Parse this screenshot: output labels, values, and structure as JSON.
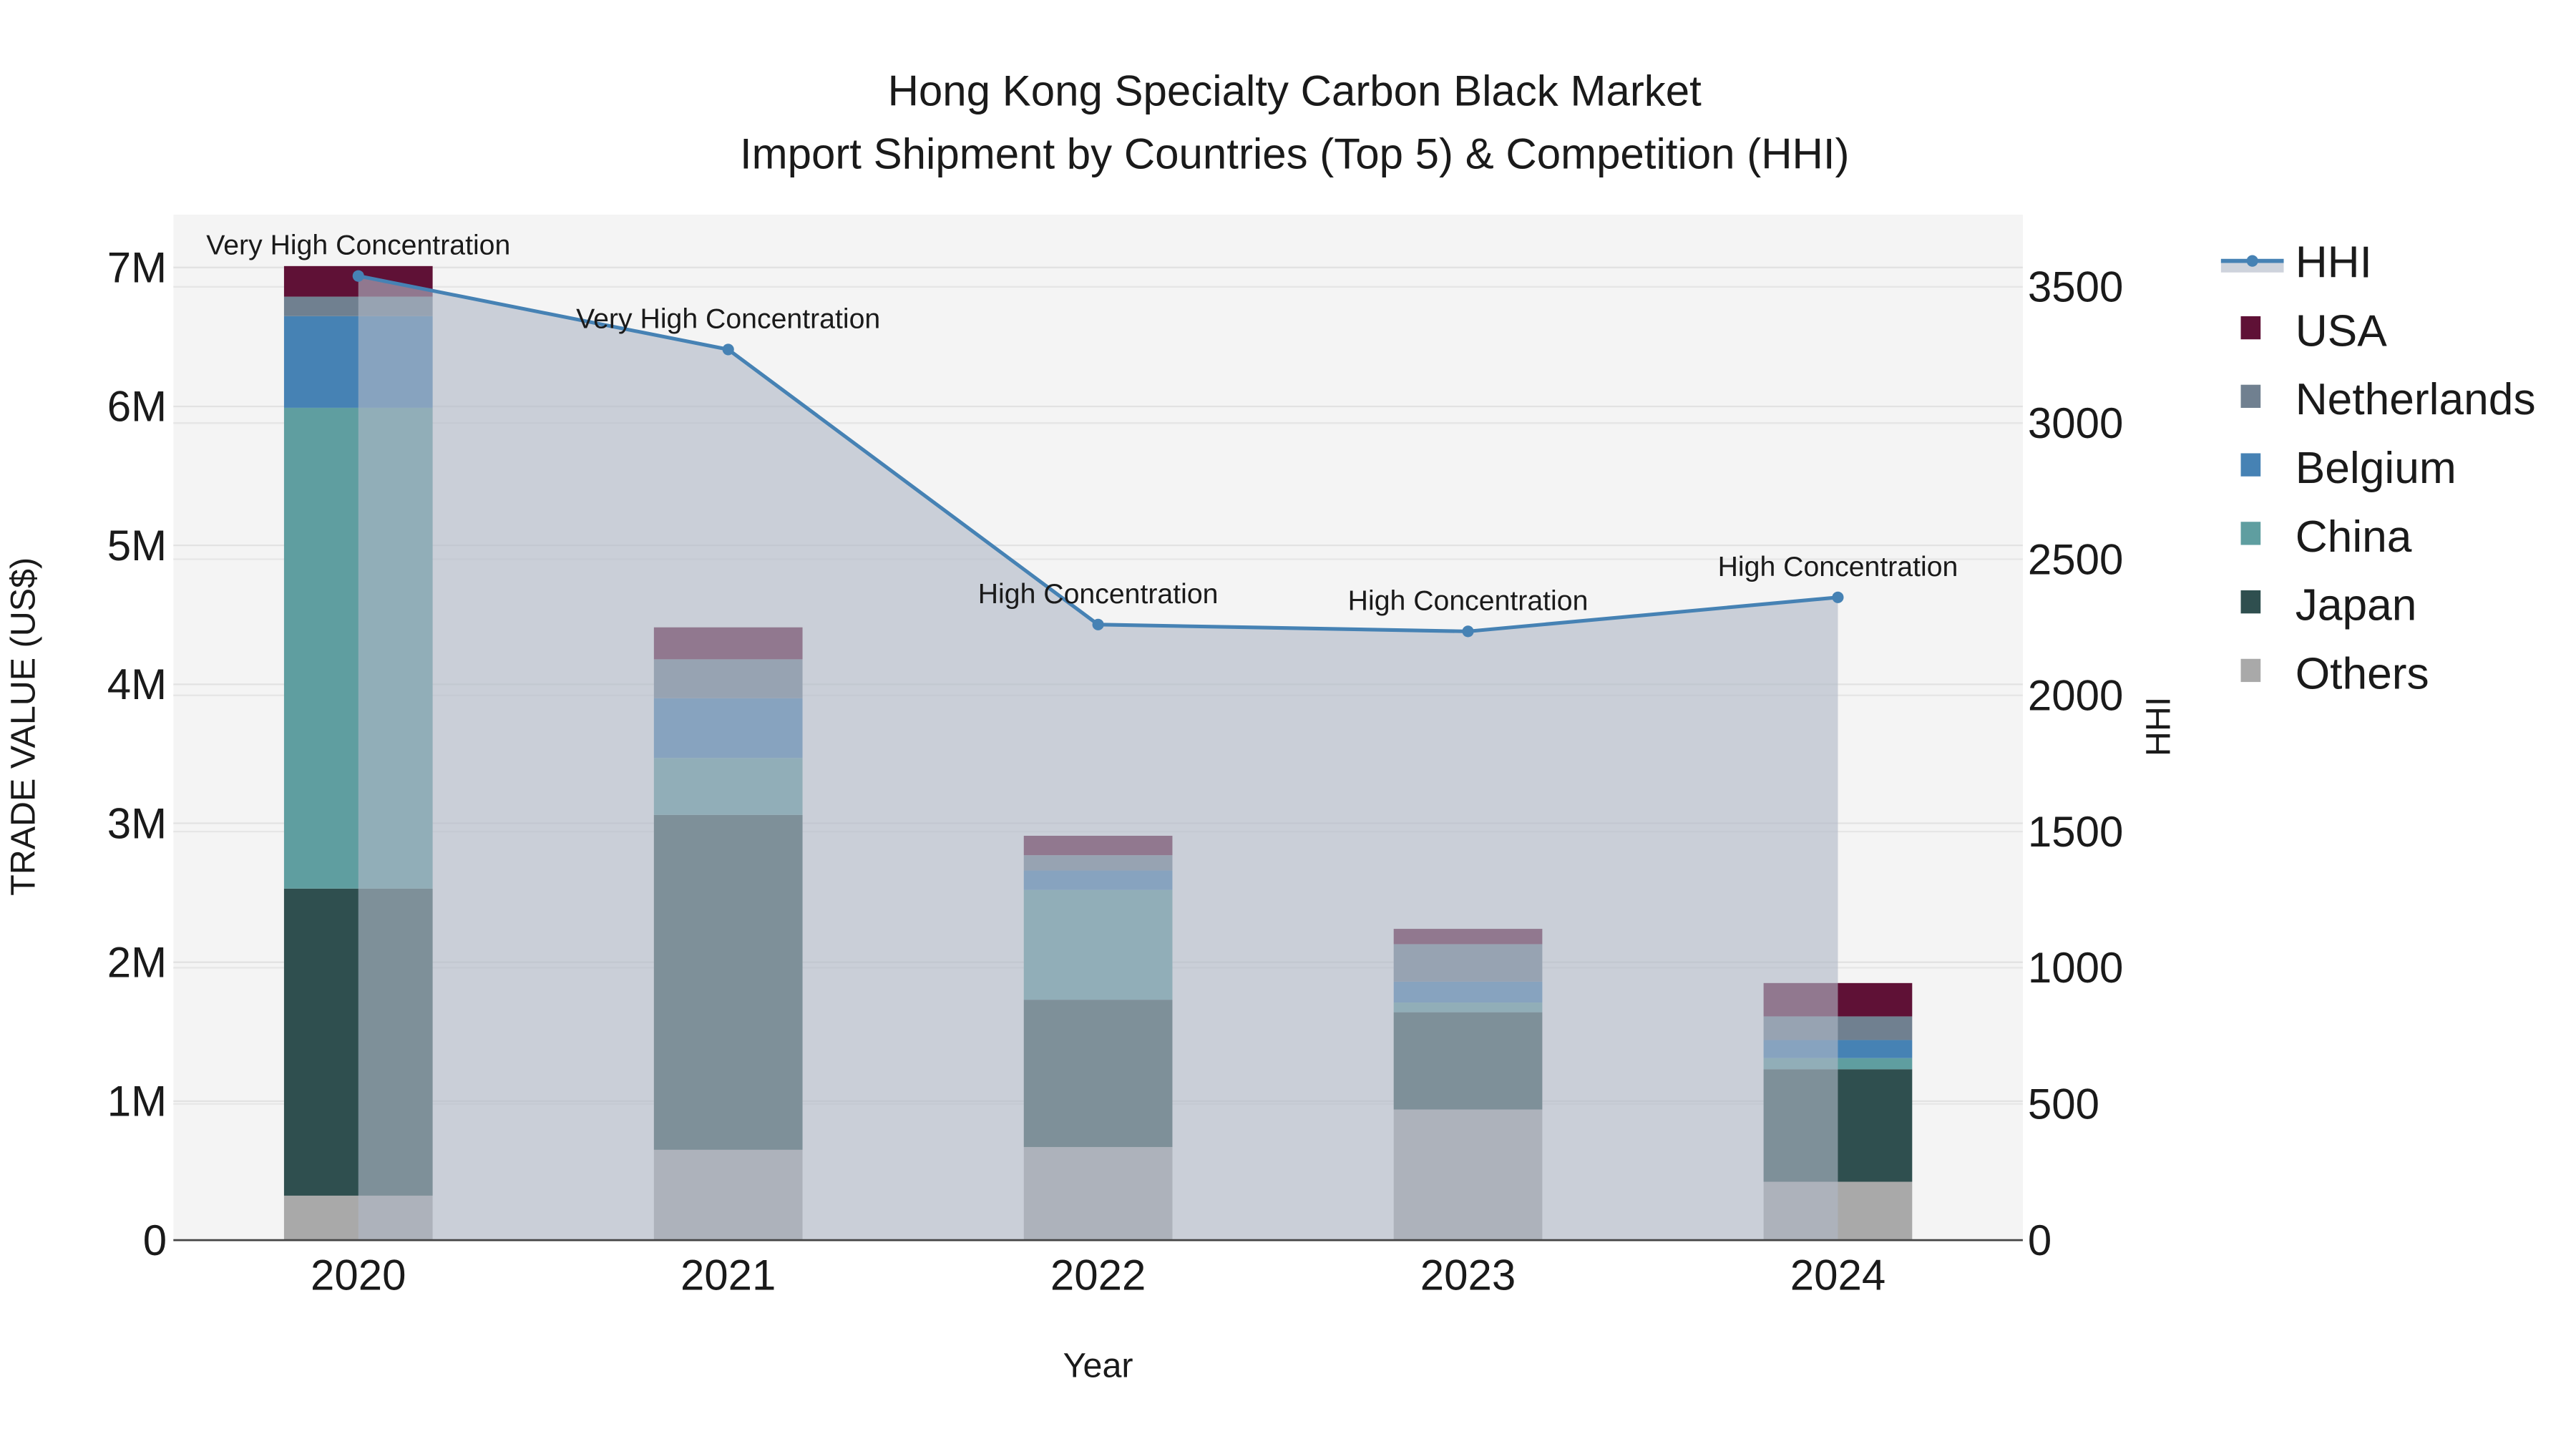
{
  "chart_data": {
    "type": "bar",
    "title_line1": "Hong Kong Specialty Carbon Black Market",
    "title_line2": "Import Shipment by Countries (Top 5) & Competition (HHI)",
    "xlabel": "Year",
    "ylabel": "TRADE VALUE (US$)",
    "y2label": "HHI",
    "categories": [
      "2020",
      "2021",
      "2022",
      "2023",
      "2024"
    ],
    "ylim": [
      0,
      7380000
    ],
    "y2lim": [
      0,
      3765
    ],
    "yticks": [
      0,
      1000000,
      2000000,
      3000000,
      4000000,
      5000000,
      6000000,
      7000000
    ],
    "ytick_labels": [
      "0",
      "1M",
      "2M",
      "3M",
      "4M",
      "5M",
      "6M",
      "7M"
    ],
    "y2ticks": [
      0,
      500,
      1000,
      1500,
      2000,
      2500,
      3000,
      3500
    ],
    "y2tick_labels": [
      "0",
      "500",
      "1000",
      "1500",
      "2000",
      "2500",
      "3000",
      "3500"
    ],
    "stacked": true,
    "series": [
      {
        "name": "Others",
        "color": "#a9a9a9",
        "values": [
          320000,
          650000,
          670000,
          940000,
          420000
        ]
      },
      {
        "name": "Japan",
        "color": "#2f4f4f",
        "values": [
          2210000,
          2410000,
          1060000,
          700000,
          810000
        ]
      },
      {
        "name": "China",
        "color": "#5f9ea0",
        "values": [
          3460000,
          410000,
          790000,
          70000,
          80000
        ]
      },
      {
        "name": "Belgium",
        "color": "#4682b4",
        "values": [
          660000,
          430000,
          140000,
          150000,
          130000
        ]
      },
      {
        "name": "Netherlands",
        "color": "#708090",
        "values": [
          140000,
          280000,
          110000,
          270000,
          170000
        ]
      },
      {
        "name": "USA",
        "color": "#5f1136",
        "values": [
          220000,
          230000,
          140000,
          110000,
          240000
        ]
      }
    ],
    "hhi": {
      "name": "HHI",
      "color": "#4682b4",
      "values": [
        3540,
        3270,
        2260,
        2235,
        2360
      ],
      "annotations": [
        "Very High Concentration",
        "Very High Concentration",
        "High Concentration",
        "High Concentration",
        "High Concentration"
      ]
    },
    "legend": [
      "HHI",
      "USA",
      "Netherlands",
      "Belgium",
      "China",
      "Japan",
      "Others"
    ],
    "legend_placement": "right",
    "grid": true
  }
}
